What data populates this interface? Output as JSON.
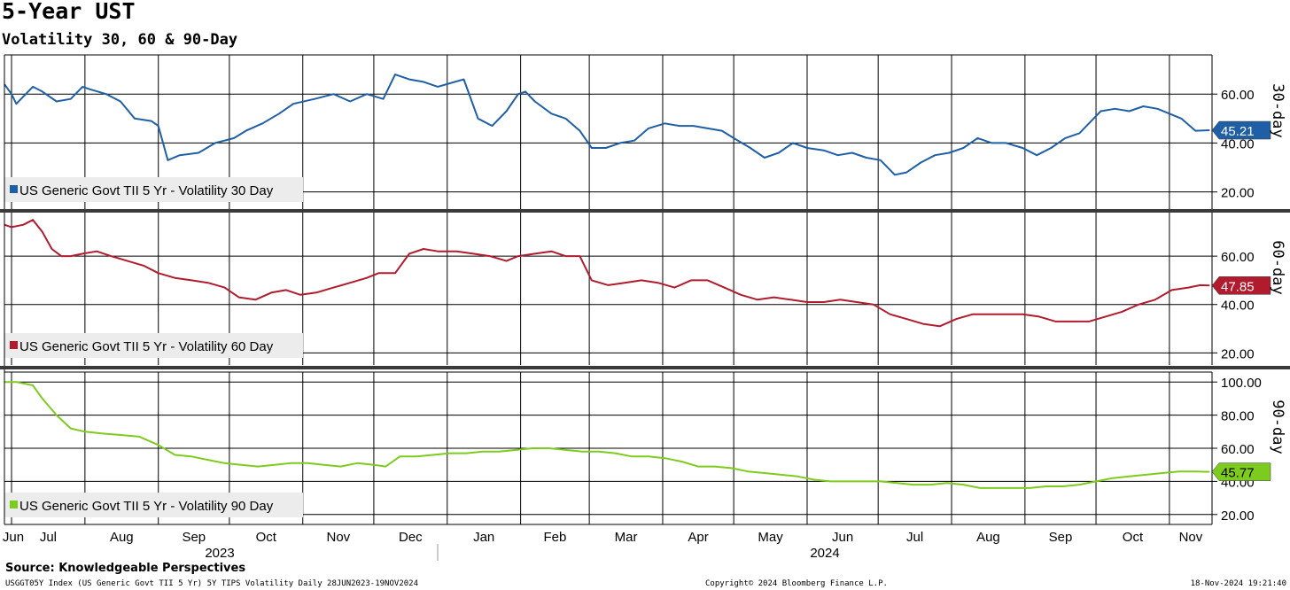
{
  "title": "5-Year UST",
  "subtitle": "Volatility 30, 60 & 90-Day",
  "source": "Source: Knowledgeable Perspectives",
  "footer": {
    "left": "USGGT05Y Index (US Generic Govt TII 5 Yr) 5Y TIPS Volatility  Daily 28JUN2023-19NOV2024",
    "center": "Copyright© 2024 Bloomberg Finance L.P.",
    "right": "18-Nov-2024 19:21:40"
  },
  "colors": {
    "s30": "#1f5fa6",
    "s60": "#b01c2e",
    "s90": "#7ecb1f",
    "grid": "#000000"
  },
  "chart_data": {
    "type": "line",
    "x_axis": {
      "months": [
        "Jun",
        "Jul",
        "Aug",
        "Sep",
        "Oct",
        "Nov",
        "Dec",
        "Jan",
        "Feb",
        "Mar",
        "Apr",
        "May",
        "Jun",
        "Jul",
        "Aug",
        "Sep",
        "Oct",
        "Nov"
      ],
      "month_start_dates": [
        "2023-06-28",
        "2023-07-01",
        "2023-08-01",
        "2023-09-01",
        "2023-10-01",
        "2023-11-01",
        "2023-12-01",
        "2024-01-01",
        "2024-02-01",
        "2024-03-01",
        "2024-04-01",
        "2024-05-01",
        "2024-06-01",
        "2024-07-01",
        "2024-08-01",
        "2024-09-01",
        "2024-10-01",
        "2024-11-01"
      ],
      "years": [
        "2023",
        "2024"
      ],
      "range": [
        "2023-06-28",
        "2024-11-19"
      ]
    },
    "panels": [
      {
        "axis_label": "30-day",
        "legend": "US Generic Govt TII 5 Yr - Volatility 30 Day",
        "last_value": "45.21",
        "yticks": [
          "20.00",
          "40.00",
          "60.00"
        ],
        "ylim": [
          13,
          76
        ],
        "series": {
          "name": "US Generic Govt TII 5 Yr - Volatility 30 Day",
          "x": [
            "2023-06-28",
            "2023-07-01",
            "2023-07-03",
            "2023-07-10",
            "2023-07-14",
            "2023-07-20",
            "2023-07-26",
            "2023-07-31",
            "2023-08-03",
            "2023-08-10",
            "2023-08-16",
            "2023-08-22",
            "2023-08-29",
            "2023-09-01",
            "2023-09-05",
            "2023-09-10",
            "2023-09-18",
            "2023-09-25",
            "2023-10-03",
            "2023-10-08",
            "2023-10-15",
            "2023-10-22",
            "2023-10-28",
            "2023-11-06",
            "2023-11-14",
            "2023-11-21",
            "2023-11-28",
            "2023-12-05",
            "2023-12-10",
            "2023-12-16",
            "2023-12-22",
            "2023-12-28",
            "2024-01-08",
            "2024-01-14",
            "2024-01-20",
            "2024-01-26",
            "2024-01-31",
            "2024-02-03",
            "2024-02-07",
            "2024-02-14",
            "2024-02-20",
            "2024-02-26",
            "2024-03-02",
            "2024-03-08",
            "2024-03-14",
            "2024-03-20",
            "2024-03-26",
            "2024-04-02",
            "2024-04-08",
            "2024-04-14",
            "2024-04-20",
            "2024-04-26",
            "2024-05-01",
            "2024-05-08",
            "2024-05-14",
            "2024-05-20",
            "2024-05-26",
            "2024-06-01",
            "2024-06-08",
            "2024-06-14",
            "2024-06-20",
            "2024-06-26",
            "2024-07-02",
            "2024-07-08",
            "2024-07-13",
            "2024-07-19",
            "2024-07-25",
            "2024-07-31",
            "2024-08-06",
            "2024-08-12",
            "2024-08-18",
            "2024-08-24",
            "2024-08-31",
            "2024-09-06",
            "2024-09-12",
            "2024-09-18",
            "2024-09-24",
            "2024-09-30",
            "2024-10-03",
            "2024-10-09",
            "2024-10-15",
            "2024-10-21",
            "2024-10-27",
            "2024-11-01",
            "2024-11-06",
            "2024-11-12",
            "2024-11-18"
          ],
          "values": [
            64,
            60,
            56,
            63,
            61,
            57,
            58,
            63,
            62,
            60,
            57,
            50,
            49,
            47,
            33,
            35,
            36,
            40,
            42,
            45,
            48,
            52,
            56,
            58,
            60,
            57,
            60,
            58,
            68,
            66,
            65,
            63,
            66,
            50,
            47,
            53,
            60,
            61,
            57,
            52,
            50,
            45,
            38,
            38,
            40,
            41,
            46,
            48,
            47,
            47,
            46,
            45,
            42,
            38,
            34,
            36,
            40,
            38,
            37,
            35,
            36,
            34,
            33,
            27,
            28,
            32,
            35,
            36,
            38,
            42,
            40,
            40,
            38,
            35,
            38,
            42,
            44,
            50,
            53,
            54,
            53,
            55,
            54,
            52,
            50,
            45,
            45.21
          ]
        }
      },
      {
        "axis_label": "60-day",
        "legend": "US Generic Govt TII 5 Yr - Volatility 60 Day",
        "last_value": "47.85",
        "yticks": [
          "20.00",
          "40.00",
          "60.00"
        ],
        "ylim": [
          15,
          78
        ],
        "series": {
          "name": "US Generic Govt TII 5 Yr - Volatility 60 Day",
          "x": [
            "2023-06-28",
            "2023-07-01",
            "2023-07-06",
            "2023-07-10",
            "2023-07-14",
            "2023-07-18",
            "2023-07-22",
            "2023-07-26",
            "2023-07-31",
            "2023-08-06",
            "2023-08-12",
            "2023-08-19",
            "2023-08-26",
            "2023-09-01",
            "2023-09-08",
            "2023-09-15",
            "2023-09-22",
            "2023-09-29",
            "2023-10-05",
            "2023-10-12",
            "2023-10-19",
            "2023-10-25",
            "2023-10-31",
            "2023-11-07",
            "2023-11-14",
            "2023-11-21",
            "2023-11-28",
            "2023-12-03",
            "2023-12-10",
            "2023-12-16",
            "2023-12-22",
            "2023-12-28",
            "2024-01-05",
            "2024-01-12",
            "2024-01-19",
            "2024-01-26",
            "2024-01-31",
            "2024-02-07",
            "2024-02-14",
            "2024-02-20",
            "2024-02-26",
            "2024-03-02",
            "2024-03-09",
            "2024-03-16",
            "2024-03-23",
            "2024-03-30",
            "2024-04-06",
            "2024-04-13",
            "2024-04-20",
            "2024-04-27",
            "2024-05-04",
            "2024-05-11",
            "2024-05-18",
            "2024-05-25",
            "2024-06-01",
            "2024-06-08",
            "2024-06-15",
            "2024-06-22",
            "2024-06-29",
            "2024-07-06",
            "2024-07-13",
            "2024-07-20",
            "2024-07-27",
            "2024-08-03",
            "2024-08-10",
            "2024-08-17",
            "2024-08-24",
            "2024-08-31",
            "2024-09-07",
            "2024-09-14",
            "2024-09-21",
            "2024-09-28",
            "2024-10-05",
            "2024-10-12",
            "2024-10-19",
            "2024-10-26",
            "2024-11-02",
            "2024-11-09",
            "2024-11-14",
            "2024-11-18"
          ],
          "values": [
            73,
            72,
            73,
            75,
            70,
            63,
            60,
            60,
            61,
            62,
            60,
            58,
            56,
            53,
            51,
            50,
            49,
            47,
            43,
            42,
            45,
            46,
            44,
            45,
            47,
            49,
            51,
            53,
            53,
            61,
            63,
            62,
            62,
            61,
            60,
            58,
            60,
            61,
            62,
            60,
            60,
            50,
            48,
            49,
            50,
            49,
            47,
            50,
            50,
            47,
            44,
            42,
            43,
            42,
            41,
            41,
            42,
            41,
            40,
            36,
            34,
            32,
            31,
            34,
            36,
            36,
            36,
            36,
            35,
            33,
            33,
            33,
            35,
            37,
            40,
            42,
            46,
            47,
            48,
            47.85
          ]
        }
      },
      {
        "axis_label": "90-day",
        "legend": "US Generic Govt TII 5 Yr - Volatility 90 Day",
        "last_value": "45.77",
        "yticks": [
          "20.00",
          "40.00",
          "60.00",
          "80.00",
          "100.00"
        ],
        "ylim": [
          14,
          106
        ],
        "series": {
          "name": "US Generic Govt TII 5 Yr - Volatility 90 Day",
          "x": [
            "2023-06-28",
            "2023-07-03",
            "2023-07-10",
            "2023-07-14",
            "2023-07-20",
            "2023-07-26",
            "2023-08-01",
            "2023-08-08",
            "2023-08-16",
            "2023-08-24",
            "2023-09-01",
            "2023-09-08",
            "2023-09-15",
            "2023-09-22",
            "2023-09-29",
            "2023-10-06",
            "2023-10-13",
            "2023-10-20",
            "2023-10-27",
            "2023-11-03",
            "2023-11-10",
            "2023-11-17",
            "2023-11-24",
            "2023-12-01",
            "2023-12-06",
            "2023-12-12",
            "2023-12-19",
            "2023-12-26",
            "2024-01-02",
            "2024-01-09",
            "2024-01-16",
            "2024-01-23",
            "2024-01-30",
            "2024-02-06",
            "2024-02-13",
            "2024-02-20",
            "2024-02-27",
            "2024-03-05",
            "2024-03-12",
            "2024-03-19",
            "2024-03-26",
            "2024-04-02",
            "2024-04-09",
            "2024-04-16",
            "2024-04-23",
            "2024-04-30",
            "2024-05-07",
            "2024-05-14",
            "2024-05-21",
            "2024-05-28",
            "2024-06-04",
            "2024-06-11",
            "2024-06-18",
            "2024-06-25",
            "2024-07-02",
            "2024-07-09",
            "2024-07-16",
            "2024-07-23",
            "2024-07-30",
            "2024-08-06",
            "2024-08-13",
            "2024-08-20",
            "2024-08-27",
            "2024-09-03",
            "2024-09-10",
            "2024-09-17",
            "2024-09-24",
            "2024-10-01",
            "2024-10-08",
            "2024-10-15",
            "2024-10-22",
            "2024-10-29",
            "2024-11-05",
            "2024-11-12",
            "2024-11-18"
          ],
          "values": [
            100,
            100,
            98,
            90,
            80,
            72,
            70,
            69,
            68,
            67,
            62,
            56,
            55,
            53,
            51,
            50,
            49,
            50,
            51,
            51,
            50,
            49,
            51,
            50,
            49,
            55,
            55,
            56,
            57,
            57,
            58,
            58,
            59,
            60,
            60,
            59,
            58,
            58,
            57,
            55,
            55,
            54,
            52,
            49,
            49,
            48,
            46,
            45,
            44,
            43,
            41,
            40,
            40,
            40,
            40,
            39,
            38,
            38,
            39,
            38,
            36,
            36,
            36,
            36,
            37,
            37,
            38,
            40,
            42,
            43,
            44,
            45,
            46,
            46,
            45.77
          ]
        }
      }
    ]
  }
}
